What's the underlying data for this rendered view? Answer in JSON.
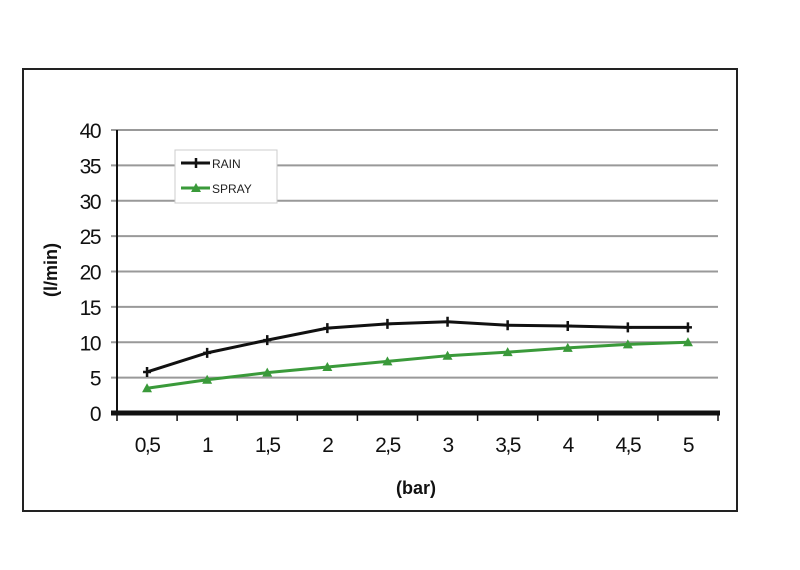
{
  "chart_data": {
    "type": "line",
    "title": "",
    "xlabel": "(bar)",
    "ylabel": "(l/min)",
    "categories": [
      "0,5",
      "1",
      "1,5",
      "2",
      "2,5",
      "3",
      "3,5",
      "4",
      "4,5",
      "5"
    ],
    "ylim": [
      0,
      40
    ],
    "yticks": [
      "0",
      "5",
      "10",
      "15",
      "20",
      "25",
      "30",
      "35",
      "40"
    ],
    "grid": true,
    "legend": "top-left",
    "series": [
      {
        "name": "RAIN",
        "color": "#111111",
        "marker": "plus",
        "values": [
          5.8,
          8.5,
          10.3,
          12.0,
          12.6,
          12.9,
          12.4,
          12.3,
          12.1,
          12.1
        ]
      },
      {
        "name": "SPRAY",
        "color": "#3a9a3a",
        "marker": "triangle",
        "values": [
          3.5,
          4.7,
          5.7,
          6.5,
          7.3,
          8.1,
          8.6,
          9.2,
          9.7,
          10.0
        ]
      }
    ]
  }
}
